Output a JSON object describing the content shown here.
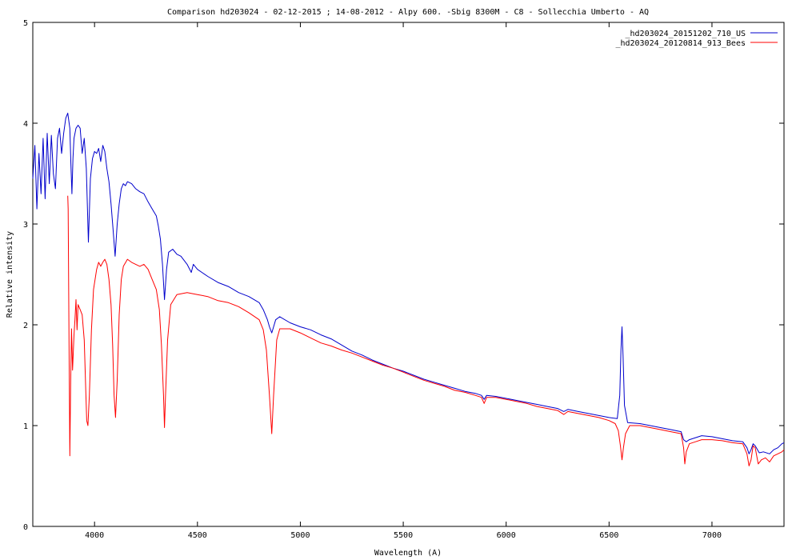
{
  "chart_data": {
    "type": "line",
    "title": "Comparison hd203024  - 02-12-2015 ; 14-08-2012  - Alpy 600. -Sbig 8300M -  C8  - Sollecchia Umberto - AQ",
    "xlabel": "Wavelength (A)",
    "ylabel": "Relative intensity",
    "xlim": [
      3700,
      7350
    ],
    "ylim": [
      0,
      5
    ],
    "xticks": [
      4000,
      4500,
      5000,
      5500,
      6000,
      6500,
      7000
    ],
    "xtick_labels": [
      "4000",
      "4500",
      "5000",
      "5500",
      "6000",
      "6500",
      "7000"
    ],
    "yticks": [
      0,
      1,
      2,
      3,
      4,
      5
    ],
    "ytick_labels": [
      "0",
      "1",
      "2",
      "3",
      "4",
      "5"
    ],
    "grid": false,
    "legend_position": "top-right",
    "series": [
      {
        "name": "_hd203024_20151202_710_US",
        "color": "#0000cc",
        "points": [
          [
            3700,
            3.45
          ],
          [
            3710,
            3.78
          ],
          [
            3720,
            3.15
          ],
          [
            3730,
            3.7
          ],
          [
            3740,
            3.3
          ],
          [
            3750,
            3.85
          ],
          [
            3760,
            3.25
          ],
          [
            3770,
            3.9
          ],
          [
            3780,
            3.4
          ],
          [
            3790,
            3.88
          ],
          [
            3800,
            3.5
          ],
          [
            3810,
            3.35
          ],
          [
            3820,
            3.85
          ],
          [
            3830,
            3.95
          ],
          [
            3840,
            3.7
          ],
          [
            3850,
            3.9
          ],
          [
            3860,
            4.05
          ],
          [
            3870,
            4.1
          ],
          [
            3880,
            3.95
          ],
          [
            3885,
            3.6
          ],
          [
            3890,
            3.3
          ],
          [
            3895,
            3.65
          ],
          [
            3900,
            3.85
          ],
          [
            3910,
            3.95
          ],
          [
            3920,
            3.98
          ],
          [
            3930,
            3.95
          ],
          [
            3940,
            3.7
          ],
          [
            3950,
            3.85
          ],
          [
            3960,
            3.55
          ],
          [
            3970,
            2.82
          ],
          [
            3980,
            3.45
          ],
          [
            3990,
            3.65
          ],
          [
            4000,
            3.72
          ],
          [
            4010,
            3.7
          ],
          [
            4020,
            3.75
          ],
          [
            4030,
            3.62
          ],
          [
            4040,
            3.78
          ],
          [
            4050,
            3.72
          ],
          [
            4060,
            3.55
          ],
          [
            4070,
            3.42
          ],
          [
            4080,
            3.2
          ],
          [
            4090,
            2.95
          ],
          [
            4100,
            2.68
          ],
          [
            4110,
            3.0
          ],
          [
            4120,
            3.2
          ],
          [
            4130,
            3.35
          ],
          [
            4140,
            3.4
          ],
          [
            4150,
            3.38
          ],
          [
            4160,
            3.42
          ],
          [
            4180,
            3.4
          ],
          [
            4200,
            3.35
          ],
          [
            4220,
            3.32
          ],
          [
            4240,
            3.3
          ],
          [
            4260,
            3.22
          ],
          [
            4280,
            3.15
          ],
          [
            4300,
            3.08
          ],
          [
            4310,
            2.98
          ],
          [
            4320,
            2.85
          ],
          [
            4330,
            2.6
          ],
          [
            4340,
            2.25
          ],
          [
            4350,
            2.55
          ],
          [
            4360,
            2.72
          ],
          [
            4380,
            2.75
          ],
          [
            4400,
            2.7
          ],
          [
            4420,
            2.68
          ],
          [
            4450,
            2.6
          ],
          [
            4470,
            2.52
          ],
          [
            4480,
            2.6
          ],
          [
            4500,
            2.55
          ],
          [
            4550,
            2.48
          ],
          [
            4600,
            2.42
          ],
          [
            4650,
            2.38
          ],
          [
            4700,
            2.32
          ],
          [
            4750,
            2.28
          ],
          [
            4800,
            2.22
          ],
          [
            4820,
            2.15
          ],
          [
            4840,
            2.05
          ],
          [
            4850,
            1.98
          ],
          [
            4861,
            1.92
          ],
          [
            4870,
            1.98
          ],
          [
            4880,
            2.05
          ],
          [
            4900,
            2.08
          ],
          [
            4950,
            2.02
          ],
          [
            5000,
            1.98
          ],
          [
            5050,
            1.95
          ],
          [
            5100,
            1.9
          ],
          [
            5150,
            1.86
          ],
          [
            5200,
            1.8
          ],
          [
            5250,
            1.74
          ],
          [
            5300,
            1.7
          ],
          [
            5350,
            1.65
          ],
          [
            5400,
            1.61
          ],
          [
            5450,
            1.57
          ],
          [
            5500,
            1.54
          ],
          [
            5550,
            1.5
          ],
          [
            5600,
            1.46
          ],
          [
            5650,
            1.43
          ],
          [
            5700,
            1.4
          ],
          [
            5750,
            1.37
          ],
          [
            5800,
            1.34
          ],
          [
            5850,
            1.32
          ],
          [
            5880,
            1.3
          ],
          [
            5893,
            1.26
          ],
          [
            5905,
            1.3
          ],
          [
            5950,
            1.29
          ],
          [
            6000,
            1.27
          ],
          [
            6050,
            1.25
          ],
          [
            6100,
            1.23
          ],
          [
            6150,
            1.21
          ],
          [
            6200,
            1.19
          ],
          [
            6250,
            1.17
          ],
          [
            6280,
            1.14
          ],
          [
            6300,
            1.16
          ],
          [
            6350,
            1.14
          ],
          [
            6400,
            1.12
          ],
          [
            6450,
            1.1
          ],
          [
            6500,
            1.08
          ],
          [
            6540,
            1.07
          ],
          [
            6552,
            1.3
          ],
          [
            6558,
            1.75
          ],
          [
            6563,
            1.98
          ],
          [
            6568,
            1.7
          ],
          [
            6575,
            1.2
          ],
          [
            6590,
            1.03
          ],
          [
            6650,
            1.02
          ],
          [
            6700,
            1.0
          ],
          [
            6750,
            0.98
          ],
          [
            6800,
            0.96
          ],
          [
            6850,
            0.94
          ],
          [
            6862,
            0.86
          ],
          [
            6875,
            0.84
          ],
          [
            6890,
            0.86
          ],
          [
            6920,
            0.88
          ],
          [
            6950,
            0.9
          ],
          [
            7000,
            0.89
          ],
          [
            7050,
            0.87
          ],
          [
            7100,
            0.85
          ],
          [
            7150,
            0.84
          ],
          [
            7170,
            0.78
          ],
          [
            7180,
            0.72
          ],
          [
            7190,
            0.76
          ],
          [
            7200,
            0.82
          ],
          [
            7210,
            0.8
          ],
          [
            7230,
            0.73
          ],
          [
            7250,
            0.74
          ],
          [
            7280,
            0.72
          ],
          [
            7300,
            0.76
          ],
          [
            7320,
            0.78
          ],
          [
            7340,
            0.82
          ],
          [
            7350,
            0.83
          ]
        ]
      },
      {
        "name": "_hd203024_20120814_913_Bees",
        "color": "#ff0000",
        "points": [
          [
            3870,
            3.28
          ],
          [
            3872,
            3.15
          ],
          [
            3876,
            1.8
          ],
          [
            3880,
            0.7
          ],
          [
            3884,
            1.4
          ],
          [
            3888,
            1.96
          ],
          [
            3893,
            1.55
          ],
          [
            3900,
            1.9
          ],
          [
            3905,
            2.05
          ],
          [
            3910,
            2.25
          ],
          [
            3915,
            1.95
          ],
          [
            3920,
            2.2
          ],
          [
            3930,
            2.15
          ],
          [
            3940,
            2.1
          ],
          [
            3950,
            1.85
          ],
          [
            3958,
            1.3
          ],
          [
            3962,
            1.05
          ],
          [
            3968,
            1.0
          ],
          [
            3975,
            1.3
          ],
          [
            3985,
            1.95
          ],
          [
            3995,
            2.35
          ],
          [
            4010,
            2.55
          ],
          [
            4020,
            2.62
          ],
          [
            4030,
            2.58
          ],
          [
            4040,
            2.62
          ],
          [
            4050,
            2.65
          ],
          [
            4060,
            2.6
          ],
          [
            4070,
            2.45
          ],
          [
            4080,
            2.2
          ],
          [
            4088,
            1.8
          ],
          [
            4095,
            1.3
          ],
          [
            4102,
            1.08
          ],
          [
            4110,
            1.45
          ],
          [
            4120,
            2.1
          ],
          [
            4130,
            2.45
          ],
          [
            4140,
            2.58
          ],
          [
            4160,
            2.65
          ],
          [
            4180,
            2.62
          ],
          [
            4200,
            2.6
          ],
          [
            4220,
            2.58
          ],
          [
            4240,
            2.6
          ],
          [
            4260,
            2.55
          ],
          [
            4280,
            2.45
          ],
          [
            4300,
            2.35
          ],
          [
            4315,
            2.15
          ],
          [
            4325,
            1.8
          ],
          [
            4335,
            1.3
          ],
          [
            4340,
            0.98
          ],
          [
            4345,
            1.3
          ],
          [
            4355,
            1.85
          ],
          [
            4370,
            2.2
          ],
          [
            4400,
            2.3
          ],
          [
            4450,
            2.32
          ],
          [
            4500,
            2.3
          ],
          [
            4550,
            2.28
          ],
          [
            4600,
            2.24
          ],
          [
            4650,
            2.22
          ],
          [
            4700,
            2.18
          ],
          [
            4750,
            2.12
          ],
          [
            4800,
            2.05
          ],
          [
            4820,
            1.95
          ],
          [
            4835,
            1.75
          ],
          [
            4850,
            1.3
          ],
          [
            4861,
            0.92
          ],
          [
            4870,
            1.3
          ],
          [
            4885,
            1.85
          ],
          [
            4900,
            1.96
          ],
          [
            4950,
            1.96
          ],
          [
            5000,
            1.92
          ],
          [
            5050,
            1.87
          ],
          [
            5100,
            1.82
          ],
          [
            5150,
            1.79
          ],
          [
            5200,
            1.75
          ],
          [
            5250,
            1.72
          ],
          [
            5300,
            1.68
          ],
          [
            5350,
            1.64
          ],
          [
            5400,
            1.6
          ],
          [
            5450,
            1.57
          ],
          [
            5500,
            1.53
          ],
          [
            5550,
            1.49
          ],
          [
            5600,
            1.45
          ],
          [
            5650,
            1.42
          ],
          [
            5700,
            1.39
          ],
          [
            5750,
            1.35
          ],
          [
            5800,
            1.33
          ],
          [
            5850,
            1.3
          ],
          [
            5880,
            1.28
          ],
          [
            5893,
            1.22
          ],
          [
            5905,
            1.28
          ],
          [
            5950,
            1.28
          ],
          [
            6000,
            1.26
          ],
          [
            6050,
            1.24
          ],
          [
            6100,
            1.22
          ],
          [
            6150,
            1.19
          ],
          [
            6200,
            1.17
          ],
          [
            6250,
            1.15
          ],
          [
            6280,
            1.11
          ],
          [
            6300,
            1.14
          ],
          [
            6350,
            1.12
          ],
          [
            6400,
            1.1
          ],
          [
            6450,
            1.08
          ],
          [
            6500,
            1.05
          ],
          [
            6530,
            1.02
          ],
          [
            6545,
            0.95
          ],
          [
            6555,
            0.8
          ],
          [
            6563,
            0.66
          ],
          [
            6570,
            0.78
          ],
          [
            6580,
            0.92
          ],
          [
            6600,
            1.0
          ],
          [
            6650,
            1.0
          ],
          [
            6700,
            0.98
          ],
          [
            6750,
            0.96
          ],
          [
            6800,
            0.94
          ],
          [
            6850,
            0.92
          ],
          [
            6862,
            0.78
          ],
          [
            6868,
            0.62
          ],
          [
            6875,
            0.74
          ],
          [
            6890,
            0.82
          ],
          [
            6920,
            0.84
          ],
          [
            6950,
            0.86
          ],
          [
            7000,
            0.86
          ],
          [
            7050,
            0.85
          ],
          [
            7100,
            0.83
          ],
          [
            7150,
            0.82
          ],
          [
            7170,
            0.72
          ],
          [
            7180,
            0.6
          ],
          [
            7190,
            0.66
          ],
          [
            7200,
            0.8
          ],
          [
            7210,
            0.78
          ],
          [
            7225,
            0.62
          ],
          [
            7240,
            0.66
          ],
          [
            7260,
            0.68
          ],
          [
            7280,
            0.64
          ],
          [
            7300,
            0.7
          ],
          [
            7320,
            0.72
          ],
          [
            7340,
            0.74
          ],
          [
            7350,
            0.76
          ]
        ]
      }
    ]
  }
}
